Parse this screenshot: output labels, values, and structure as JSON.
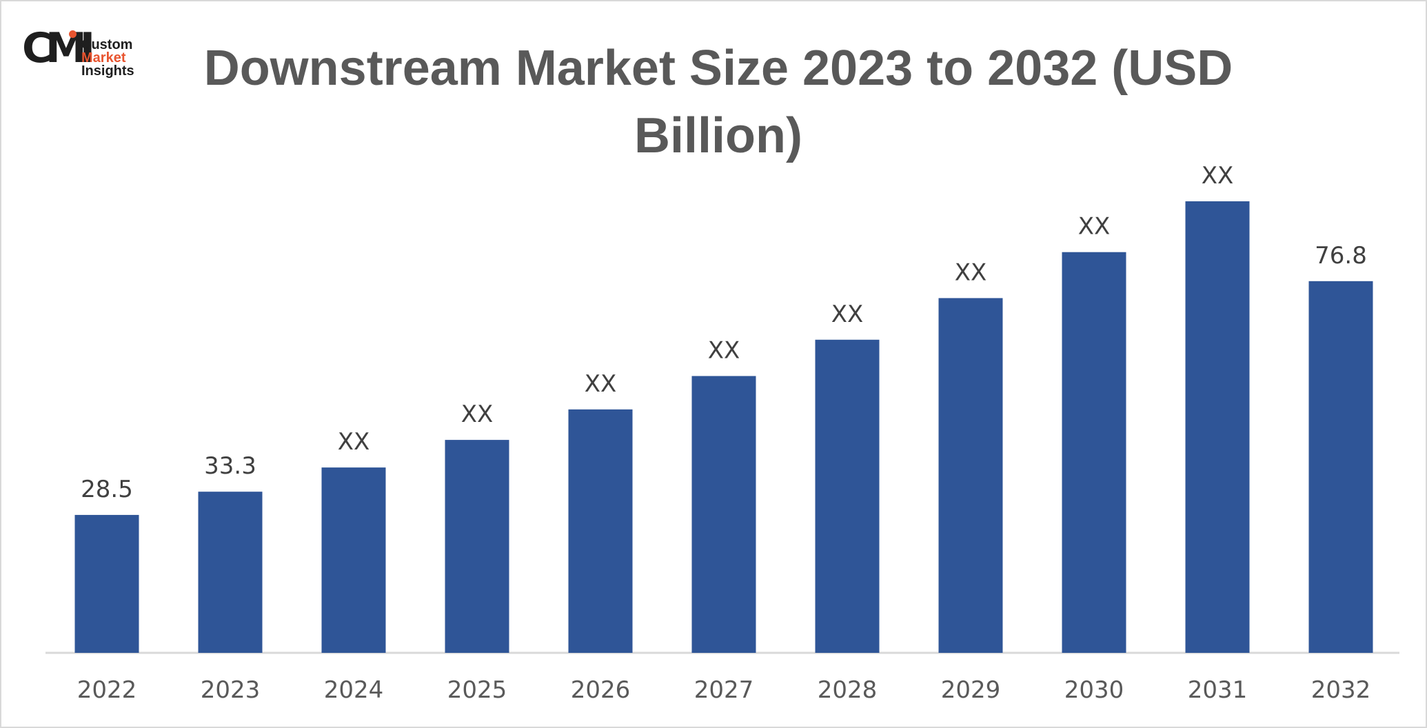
{
  "brand": {
    "mark": "CMI",
    "line1": "Custom",
    "line2": "Market",
    "line3": "Insights",
    "accent_color": "#e8542f"
  },
  "chart_data": {
    "type": "bar",
    "title": "Downstream Market Size 2023 to 2032 (USD Billion)",
    "categories": [
      "2022",
      "2023",
      "2024",
      "2025",
      "2026",
      "2027",
      "2028",
      "2029",
      "2030",
      "2031",
      "2032"
    ],
    "values": [
      28.5,
      33.3,
      38.3,
      44.0,
      50.3,
      57.2,
      64.7,
      73.3,
      82.8,
      93.3,
      76.8
    ],
    "data_labels": [
      "28.5",
      "33.3",
      "XX",
      "XX",
      "XX",
      "XX",
      "XX",
      "XX",
      "XX",
      "XX",
      "76.8"
    ],
    "bar_color": "#2f5597",
    "axis_color": "#d9d9d9",
    "grid": false,
    "legend": "none"
  }
}
